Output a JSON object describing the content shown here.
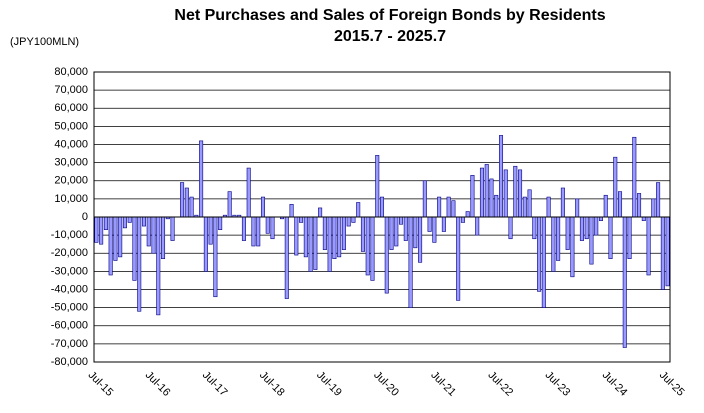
{
  "chart_data": {
    "type": "bar",
    "title": "Net Purchases and Sales of Foreign Bonds by Residents",
    "subtitle": "2015.7 - 2025.7",
    "unit_label": "(JPY100MLN)",
    "color": "#9999ff",
    "edge_color": "#000080",
    "negative_tick_color": "#ff0000",
    "grid": true,
    "ylim": [
      -80000,
      80000
    ],
    "yticks": [
      {
        "value": 80000,
        "label": "80,000"
      },
      {
        "value": 70000,
        "label": "70,000"
      },
      {
        "value": 60000,
        "label": "60,000"
      },
      {
        "value": 50000,
        "label": "50,000"
      },
      {
        "value": 40000,
        "label": "40,000"
      },
      {
        "value": 30000,
        "label": "30,000"
      },
      {
        "value": 20000,
        "label": "20,000"
      },
      {
        "value": 10000,
        "label": "10,000"
      },
      0,
      {
        "value": -10000,
        "label": "-10,000"
      },
      {
        "value": -20000,
        "label": "-20,000"
      },
      {
        "value": -30000,
        "label": "-30,000"
      },
      {
        "value": -40000,
        "label": "-40,000"
      },
      {
        "value": -50000,
        "label": "-50,000"
      },
      {
        "value": -60000,
        "label": "-60,000"
      },
      {
        "value": -70000,
        "label": "-70,000"
      },
      {
        "value": -80000,
        "label": "-80,000"
      }
    ],
    "categories": [
      "Jul-15",
      null,
      null,
      null,
      null,
      null,
      null,
      null,
      null,
      null,
      null,
      null,
      "Jul-16",
      null,
      null,
      null,
      null,
      null,
      null,
      null,
      null,
      null,
      null,
      null,
      "Jul-17",
      null,
      null,
      null,
      null,
      null,
      null,
      null,
      null,
      null,
      null,
      null,
      "Jul-18",
      null,
      null,
      null,
      null,
      null,
      null,
      null,
      null,
      null,
      null,
      null,
      "Jul-19",
      null,
      null,
      null,
      null,
      null,
      null,
      null,
      null,
      null,
      null,
      null,
      "Jul-20",
      null,
      null,
      null,
      null,
      null,
      null,
      null,
      null,
      null,
      null,
      null,
      "Jul-21",
      null,
      null,
      null,
      null,
      null,
      null,
      null,
      null,
      null,
      null,
      null,
      "Jul-22",
      null,
      null,
      null,
      null,
      null,
      null,
      null,
      null,
      null,
      null,
      null,
      "Jul-23",
      null,
      null,
      null,
      null,
      null,
      null,
      null,
      null,
      null,
      null,
      null,
      "Jul-24",
      null,
      null,
      null,
      null,
      null,
      null,
      null,
      null,
      null,
      null,
      null,
      "Jul-25"
    ],
    "values": [
      -14000,
      -15000,
      -7000,
      -32000,
      -24000,
      -22000,
      -6000,
      -3000,
      -35000,
      -52000,
      -5000,
      -16000,
      -20000,
      -54000,
      -23000,
      -1000,
      -13000,
      0,
      19000,
      16000,
      11000,
      1000,
      42000,
      -30000,
      -15000,
      -44000,
      -7000,
      1000,
      14000,
      1000,
      1000,
      -13000,
      27000,
      -16000,
      -16000,
      11000,
      -9000,
      -12000,
      0,
      -1000,
      -45000,
      7000,
      -21000,
      -3000,
      -22000,
      -30000,
      -29000,
      5000,
      -18000,
      -30000,
      -23000,
      -22000,
      -18000,
      -5000,
      -3000,
      8000,
      -19000,
      -32000,
      -35000,
      34000,
      11000,
      -42000,
      -18000,
      -16000,
      -4000,
      -13000,
      -50000,
      -17000,
      -25000,
      20000,
      -8000,
      -14000,
      11000,
      -8000,
      11000,
      9000,
      -46000,
      -3000,
      3000,
      23000,
      -10000,
      27000,
      29000,
      21000,
      12000,
      45000,
      26000,
      -12000,
      28000,
      26000,
      11000,
      15000,
      -12000,
      -41000,
      -50000,
      11000,
      -30000,
      -24000,
      16000,
      -18000,
      -33000,
      10000,
      -13000,
      -12000,
      -26000,
      -10000,
      -2000,
      12000,
      -23000,
      33000,
      14000,
      -72000,
      -23000,
      44000,
      13000,
      -2000,
      -32000,
      10000,
      19000,
      -40000,
      -38000
    ]
  }
}
